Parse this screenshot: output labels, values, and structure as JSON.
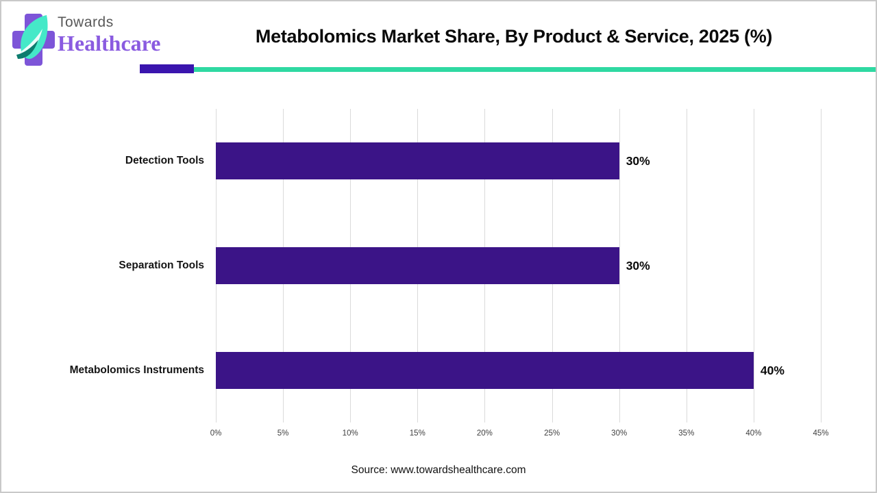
{
  "header": {
    "logo": {
      "line1": "Towards",
      "line2": "Healthcare"
    },
    "title": "Metabolomics Market Share, By Product & Service, 2025 (%)"
  },
  "colors": {
    "bar_purple": "#3b1487",
    "rule_purple": "#3a15ae",
    "rule_teal": "#2fd9a2",
    "logo_cross_purple": "#7d55d8",
    "logo_leaf_mint": "#45e9c8",
    "logo_leaf_dark": "#0d7c6e",
    "grid_gray": "#dadada"
  },
  "chart_data": {
    "type": "bar",
    "orientation": "horizontal",
    "title": "Metabolomics Market Share, By Product & Service, 2025 (%)",
    "categories": [
      "Detection Tools",
      "Separation Tools",
      "Metabolomics Instruments"
    ],
    "values": [
      30,
      30,
      40
    ],
    "value_labels": [
      "30%",
      "30%",
      "40%"
    ],
    "x_ticks": [
      "0%",
      "5%",
      "10%",
      "15%",
      "20%",
      "25%",
      "30%",
      "35%",
      "40%",
      "45%"
    ],
    "xlim": [
      0,
      45
    ],
    "grid": "vertical",
    "legend": "none",
    "xlabel": "",
    "ylabel": ""
  },
  "footer": {
    "source": "Source: www.towardshealthcare.com"
  }
}
